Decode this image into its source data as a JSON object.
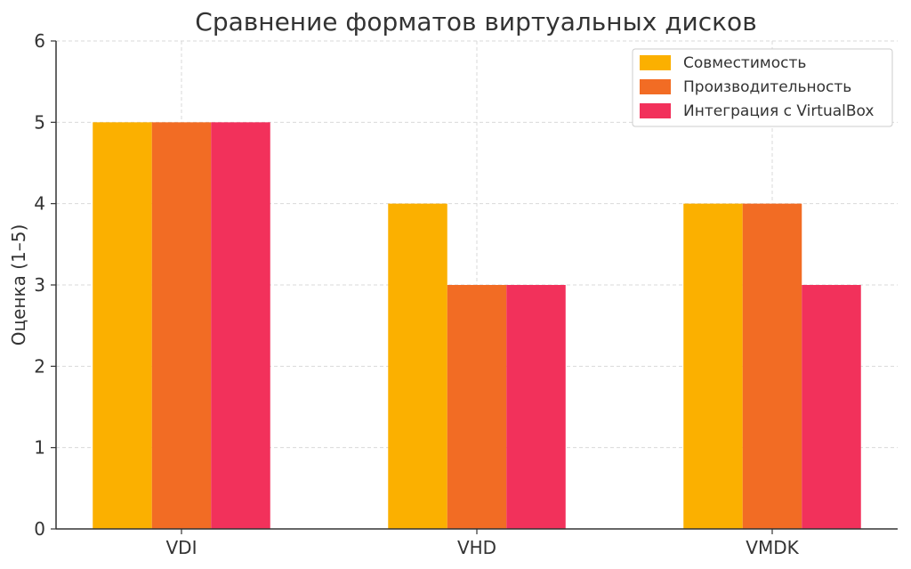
{
  "chart_data": {
    "type": "bar",
    "title": "Сравнение форматов виртуальных дисков",
    "xlabel": "",
    "ylabel": "Оценка (1–5)",
    "categories": [
      "VDI",
      "VHD",
      "VMDK"
    ],
    "ylim": [
      0,
      6
    ],
    "yticks": [
      0,
      1,
      2,
      3,
      4,
      5,
      6
    ],
    "grid": true,
    "legend_position": "top-right",
    "series": [
      {
        "name": "Совместимость",
        "color": "#FBB000",
        "values": [
          5,
          4,
          4
        ]
      },
      {
        "name": "Производительность",
        "color": "#F26C24",
        "values": [
          5,
          3,
          4
        ]
      },
      {
        "name": "Интеграция с VirtualBox",
        "color": "#F2315B",
        "values": [
          5,
          3,
          3
        ]
      }
    ]
  }
}
